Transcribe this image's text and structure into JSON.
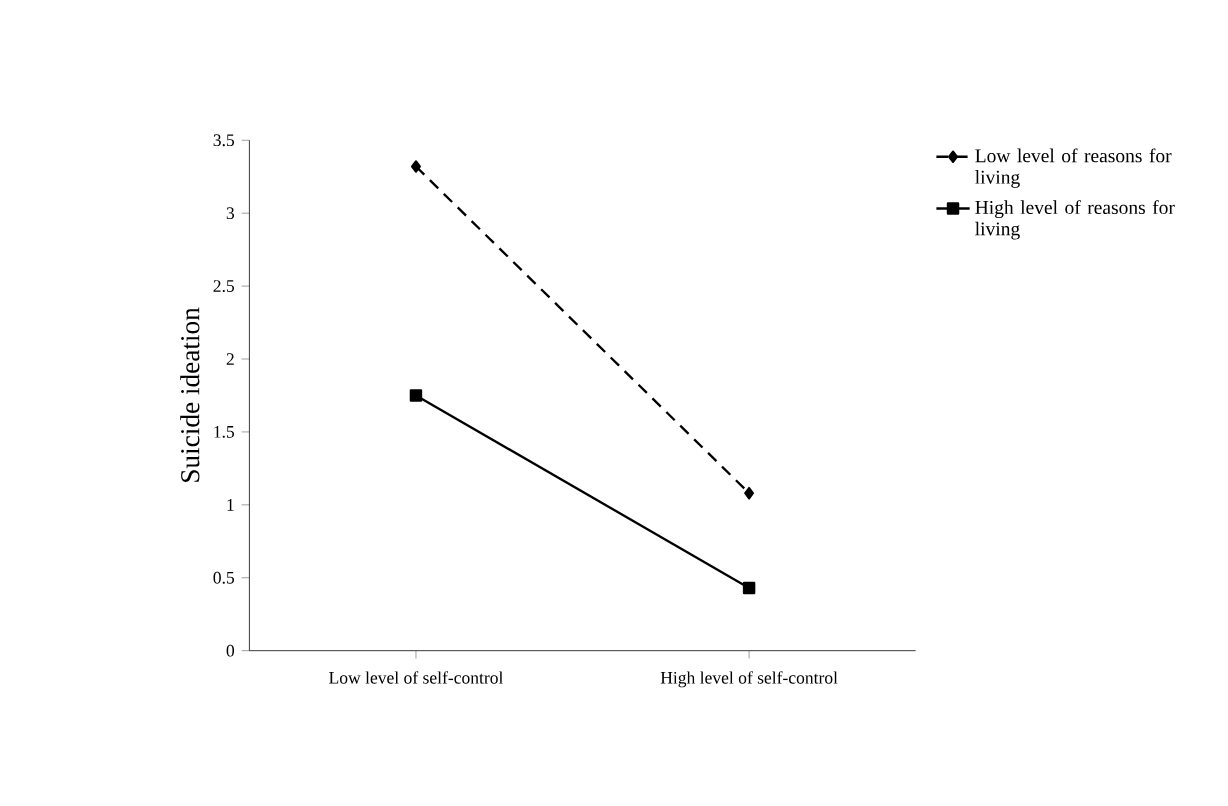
{
  "chart_data": {
    "type": "line",
    "ylabel": "Suicide ideation",
    "categories": [
      "Low level of self-control",
      "High level of self-control"
    ],
    "series": [
      {
        "name": "Low level of reasons for living",
        "color": "#000000",
        "values": [
          3.32,
          1.08
        ],
        "marker": "diamond",
        "line_style": "dashed"
      },
      {
        "name": "High level of reasons for living",
        "color": "#000000",
        "values": [
          1.75,
          0.43
        ],
        "marker": "square",
        "line_style": "solid"
      }
    ],
    "ylim": [
      0,
      3.5
    ],
    "yticks": [
      0,
      0.5,
      1,
      1.5,
      2,
      2.5,
      3,
      3.5
    ],
    "legend": "top right",
    "grid": false
  }
}
